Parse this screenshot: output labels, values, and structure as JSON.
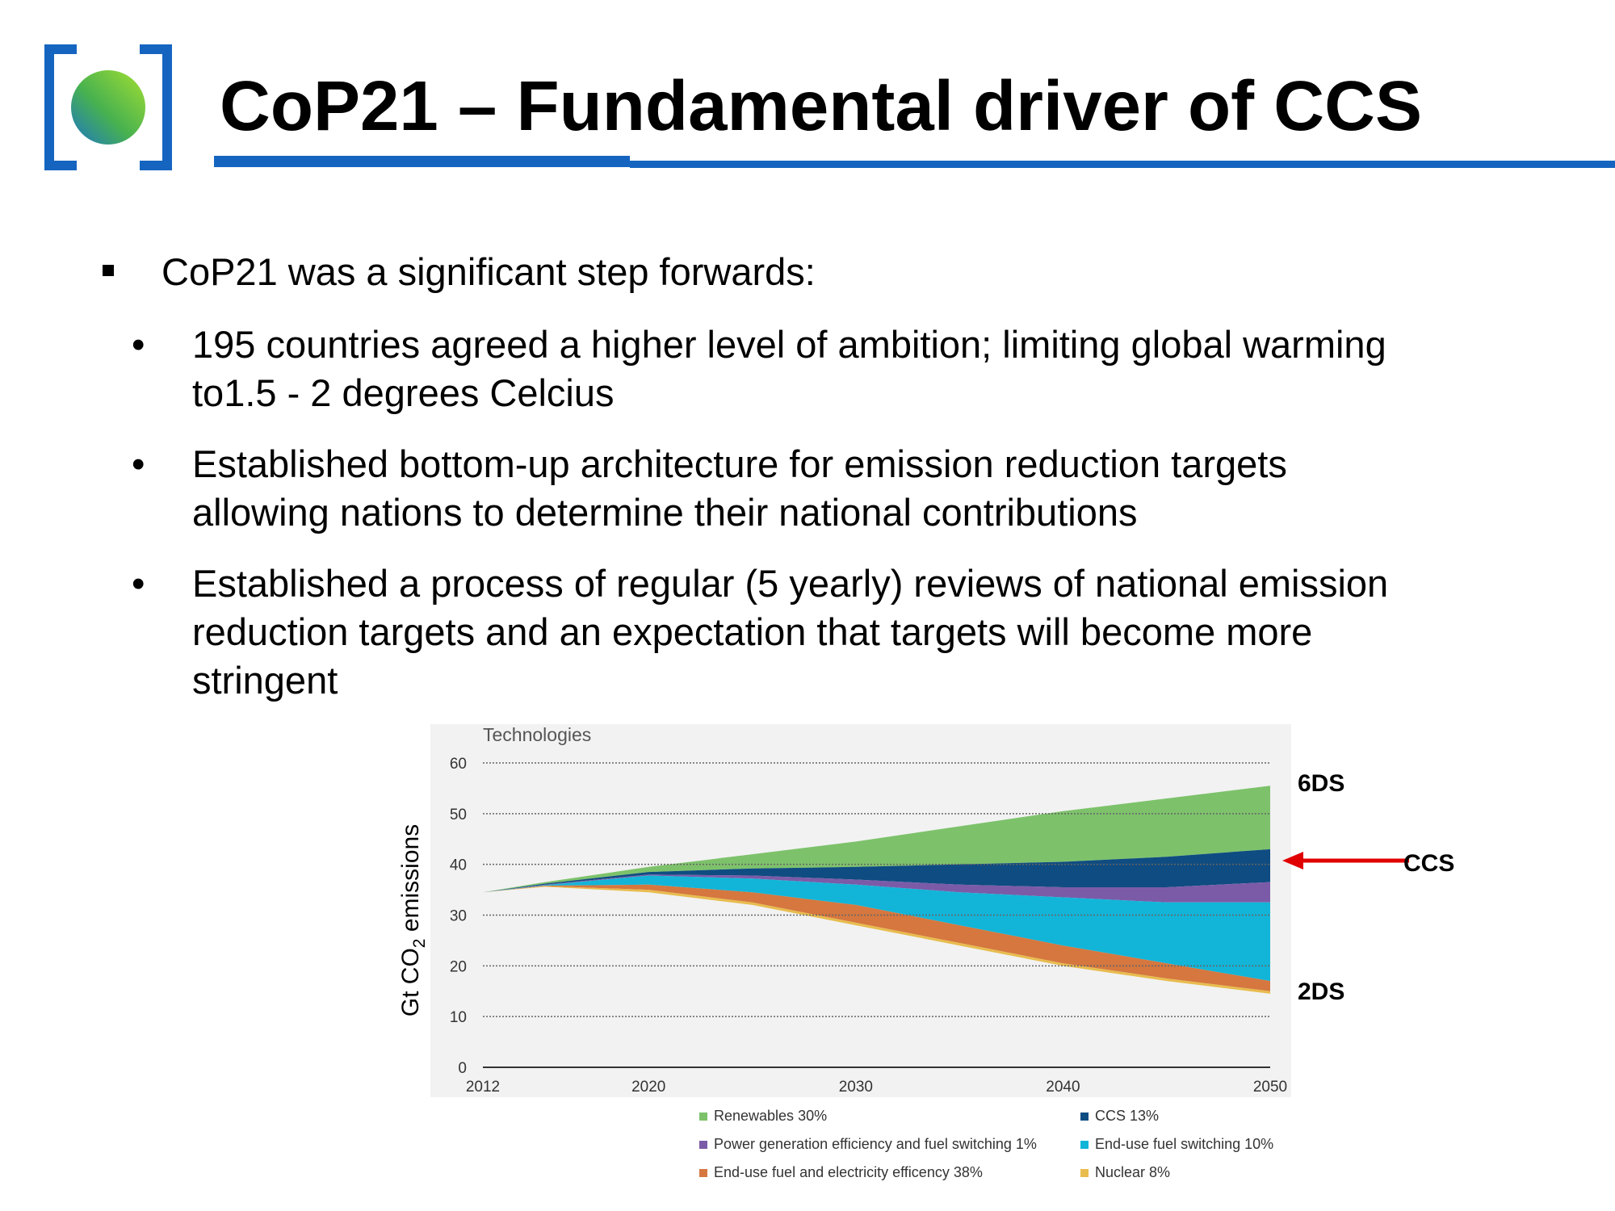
{
  "slide": {
    "title": "CoP21 – Fundamental driver of CCS",
    "bullets": {
      "main": "CoP21 was a significant step forwards:",
      "sub": [
        [
          "195 countries agreed a higher level of ambition; limiting global warming",
          "to1.5 - 2 degrees Celcius"
        ],
        [
          "Established bottom-up architecture for emission reduction targets",
          "allowing nations to determine their national contributions"
        ],
        [
          "Established a process of regular (5 yearly) reviews of national emission",
          "reduction targets and an expectation that targets will become more",
          "stringent"
        ]
      ]
    },
    "annotations": {
      "top": "6DS",
      "arrow": "CCS",
      "bottom": "2DS"
    },
    "colors": {
      "brand_blue": "#1565c0",
      "arrow_red": "#e00000"
    }
  },
  "chart_data": {
    "type": "area",
    "title": "Technologies",
    "ylabel_main": "Gt CO",
    "ylabel_sub": "2",
    "ylabel_tail": " emissions",
    "xlim": [
      2012,
      2050
    ],
    "ylim": [
      0,
      60
    ],
    "x_ticks": [
      "2012",
      "2020",
      "2030",
      "2040",
      "2050"
    ],
    "y_ticks": [
      "0",
      "10",
      "20",
      "30",
      "40",
      "50",
      "60"
    ],
    "grid": true,
    "x": [
      2012,
      2015,
      2020,
      2025,
      2030,
      2035,
      2040,
      2045,
      2050
    ],
    "boundaries": {
      "top_6DS": [
        34.5,
        36.5,
        39.5,
        42,
        44.5,
        47.5,
        50.5,
        53,
        55.5
      ],
      "renewables_bottom": [
        34.5,
        36.2,
        38.5,
        39.2,
        39.5,
        40,
        40.5,
        41.5,
        43
      ],
      "ccs_bottom": [
        34.5,
        36,
        38,
        37.8,
        37,
        36,
        35.5,
        35.5,
        36.5
      ],
      "powergen_bottom": [
        34.5,
        35.9,
        37.8,
        37.2,
        36,
        34.5,
        33.5,
        32.5,
        32.5
      ],
      "enduse_switch_bottom": [
        34.5,
        35.8,
        36,
        34.5,
        32,
        28,
        24,
        20.5,
        17
      ],
      "efficiency_bottom": [
        34.5,
        35.7,
        35,
        32.5,
        28.5,
        24.5,
        20.5,
        17.5,
        15
      ],
      "nuclear_bottom_2DS": [
        34.5,
        35.6,
        34.5,
        32,
        28,
        24,
        20,
        17,
        14.5
      ]
    },
    "series": [
      {
        "name": "Renewables 30%",
        "color": "#7dc26b"
      },
      {
        "name": "CCS 13%",
        "color": "#0f4c81"
      },
      {
        "name": "Power generation efficiency and fuel switching 1%",
        "color": "#7b5ba8"
      },
      {
        "name": "End-use fuel switching 10%",
        "color": "#12b5d8"
      },
      {
        "name": "End-use fuel and electricity efficency 38%",
        "color": "#d5773f"
      },
      {
        "name": "Nuclear 8%",
        "color": "#e8bc4e"
      }
    ],
    "legend_placement": "bottom"
  }
}
